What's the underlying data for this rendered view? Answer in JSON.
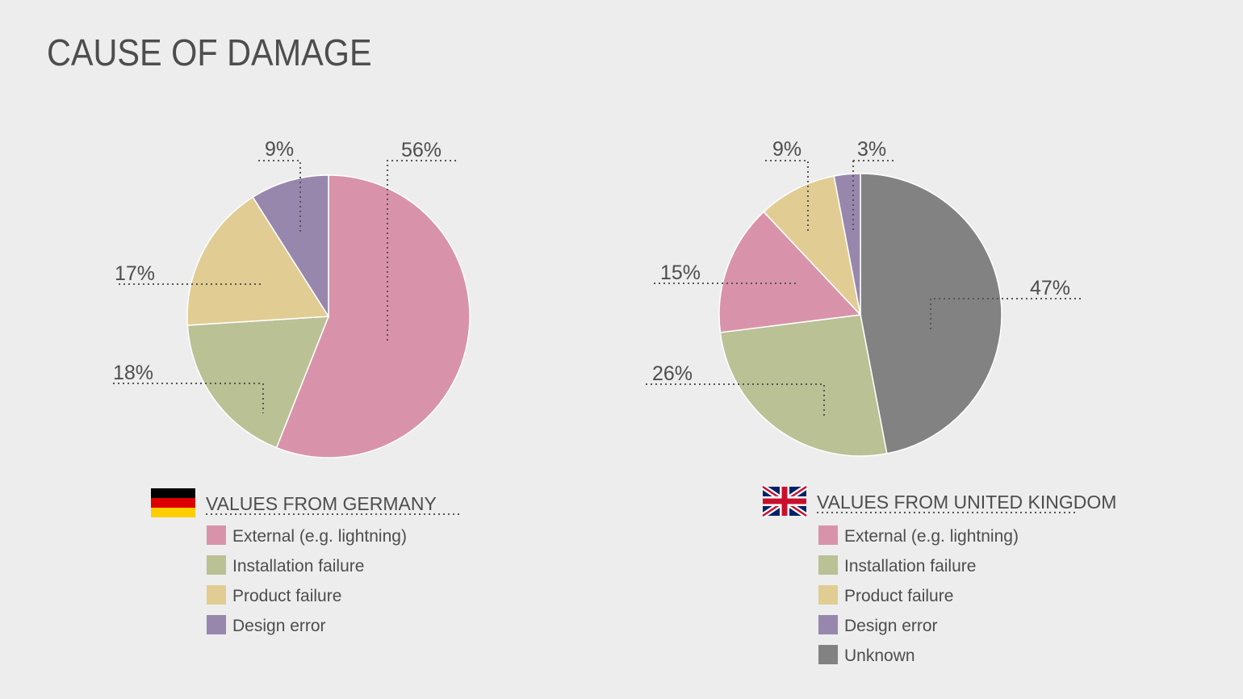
{
  "title": "CAUSE OF DAMAGE",
  "colors": {
    "External (e.g. lightning)": "#d893aa",
    "Installation failure": "#b9c195",
    "Product failure": "#e1cd94",
    "Design error": "#9887ad",
    "Unknown": "#828282"
  },
  "chart_data": [
    {
      "type": "pie",
      "legend_title": "VALUES FROM GERMANY",
      "flag": "germany-flag",
      "categories": [
        "External (e.g. lightning)",
        "Installation failure",
        "Product failure",
        "Design error"
      ],
      "values": [
        56,
        18,
        17,
        9
      ],
      "labels": [
        "56%",
        "18%",
        "17%",
        "9%"
      ]
    },
    {
      "type": "pie",
      "legend_title": "VALUES FROM UNITED KINGDOM",
      "flag": "uk-flag",
      "categories": [
        "Unknown",
        "Installation failure",
        "External (e.g. lightning)",
        "Product failure",
        "Design error"
      ],
      "values": [
        47,
        26,
        15,
        9,
        3
      ],
      "labels": [
        "47%",
        "26%",
        "15%",
        "9%",
        "3%"
      ],
      "legend_order": [
        "External (e.g. lightning)",
        "Installation failure",
        "Product failure",
        "Design error",
        "Unknown"
      ]
    }
  ]
}
